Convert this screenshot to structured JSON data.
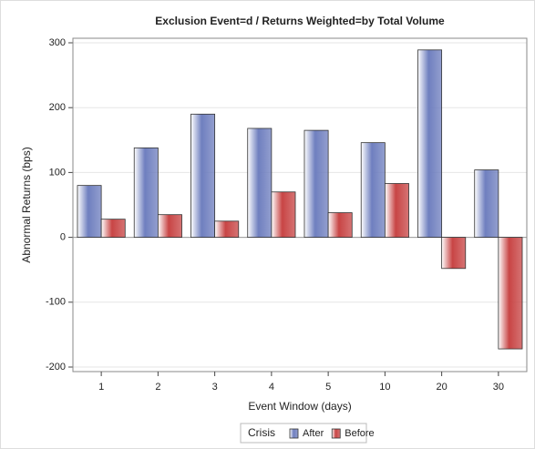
{
  "chart_data": {
    "type": "bar",
    "title": "Exclusion Event=d /  Returns Weighted=by Total Volume",
    "x_label": "Event Window (days)",
    "y_label": "Abnormal Returns (bps)",
    "categories": [
      "1",
      "2",
      "3",
      "4",
      "5",
      "10",
      "20",
      "30"
    ],
    "series": [
      {
        "name": "After",
        "color": "#6f7fbf",
        "values": [
          80,
          138,
          190,
          168,
          165,
          146,
          289,
          104
        ]
      },
      {
        "name": "Before",
        "color": "#c84545",
        "values": [
          28,
          35,
          25,
          70,
          38,
          83,
          -48,
          -172
        ]
      }
    ],
    "ylim": [
      -207,
      307
    ],
    "yticks": [
      -200,
      -100,
      0,
      100,
      200,
      300
    ],
    "grid": true,
    "legend_title": "Crisis",
    "legend_position": "bottom"
  }
}
